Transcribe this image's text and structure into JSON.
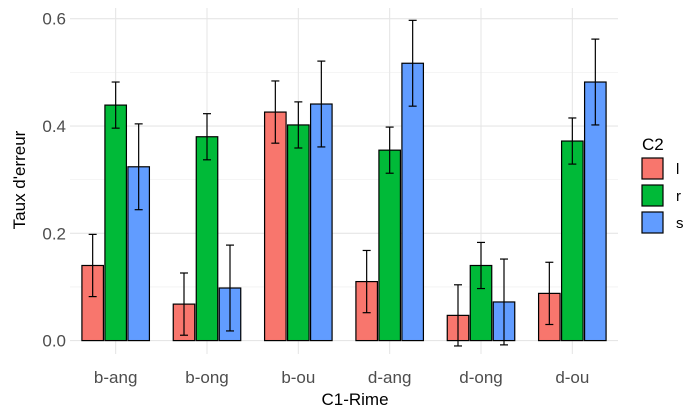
{
  "chart_data": {
    "type": "bar",
    "title": "",
    "xlabel": "C1-Rime",
    "ylabel": "Taux d'erreur",
    "ylim": [
      -0.025,
      0.62
    ],
    "yticks": [
      "0.0",
      "0.2",
      "0.4",
      "0.6"
    ],
    "ytick_values": [
      0.0,
      0.2,
      0.4,
      0.6
    ],
    "grid": true,
    "legend_position": "right",
    "legend_title": "C2",
    "categories": [
      "b-ang",
      "b-ong",
      "b-ou",
      "d-ang",
      "d-ong",
      "d-ou"
    ],
    "series": [
      {
        "name": "l",
        "color": "#F8766D",
        "values": [
          0.14,
          0.068,
          0.426,
          0.11,
          0.047,
          0.088
        ],
        "err_low": [
          0.082,
          0.01,
          0.368,
          0.052,
          -0.01,
          0.03
        ],
        "err_high": [
          0.198,
          0.126,
          0.484,
          0.168,
          0.104,
          0.146
        ]
      },
      {
        "name": "r",
        "color": "#00BA38",
        "values": [
          0.439,
          0.38,
          0.402,
          0.355,
          0.14,
          0.372
        ],
        "err_low": [
          0.396,
          0.337,
          0.359,
          0.312,
          0.097,
          0.329
        ],
        "err_high": [
          0.482,
          0.423,
          0.445,
          0.398,
          0.183,
          0.415
        ]
      },
      {
        "name": "s",
        "color": "#619CFF",
        "values": [
          0.324,
          0.098,
          0.441,
          0.517,
          0.072,
          0.482
        ],
        "err_low": [
          0.244,
          0.018,
          0.361,
          0.437,
          -0.008,
          0.402
        ],
        "err_high": [
          0.404,
          0.178,
          0.521,
          0.597,
          0.152,
          0.562
        ]
      }
    ]
  }
}
